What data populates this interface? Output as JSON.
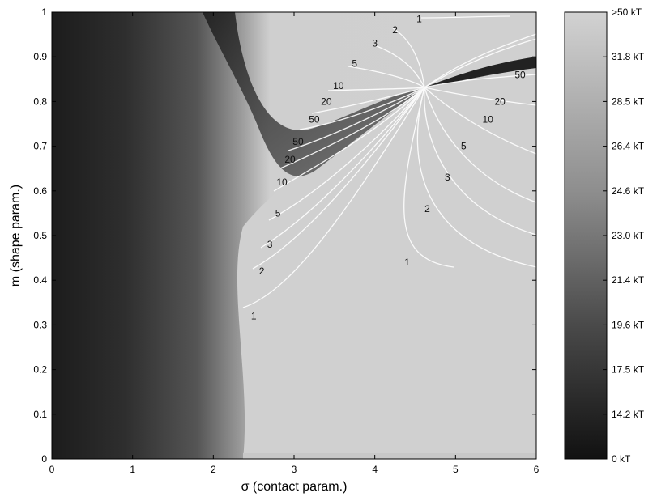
{
  "chart_data": {
    "type": "heatmap",
    "title": "",
    "xlabel": "σ (contact param.)",
    "ylabel": "m (shape param.)",
    "xlim": [
      0,
      6
    ],
    "ylim": [
      0,
      1
    ],
    "x_ticks": [
      "0",
      "1",
      "2",
      "3",
      "4",
      "5",
      "6"
    ],
    "y_ticks": [
      "0",
      "0.1",
      "0.2",
      "0.3",
      "0.4",
      "0.5",
      "0.6",
      "0.7",
      "0.8",
      "0.9",
      "1"
    ],
    "colormap": "grayscale",
    "colorbar_labels": [
      "0 kT",
      "14.2 kT",
      "17.5 kT",
      "19.6 kT",
      "21.4 kT",
      "23.0 kT",
      "24.6 kT",
      "26.4 kT",
      "28.5 kT",
      "31.8 kT",
      ">50 kT"
    ],
    "contour_color": "#ffffff",
    "saddle_point": {
      "x": 4.62,
      "y": 0.825
    },
    "contour_labels": [
      {
        "text": "1",
        "x": 2.5,
        "y": 0.32
      },
      {
        "text": "2",
        "x": 2.6,
        "y": 0.42
      },
      {
        "text": "3",
        "x": 2.7,
        "y": 0.48
      },
      {
        "text": "5",
        "x": 2.8,
        "y": 0.55
      },
      {
        "text": "10",
        "x": 2.85,
        "y": 0.62
      },
      {
        "text": "20",
        "x": 2.95,
        "y": 0.67
      },
      {
        "text": "50",
        "x": 3.05,
        "y": 0.71
      },
      {
        "text": "50",
        "x": 3.25,
        "y": 0.76
      },
      {
        "text": "20",
        "x": 3.4,
        "y": 0.8
      },
      {
        "text": "10",
        "x": 3.55,
        "y": 0.835
      },
      {
        "text": "5",
        "x": 3.75,
        "y": 0.885
      },
      {
        "text": "3",
        "x": 4.0,
        "y": 0.93
      },
      {
        "text": "2",
        "x": 4.25,
        "y": 0.96
      },
      {
        "text": "1",
        "x": 4.55,
        "y": 0.985
      },
      {
        "text": "50",
        "x": 5.8,
        "y": 0.86
      },
      {
        "text": "20",
        "x": 5.55,
        "y": 0.8
      },
      {
        "text": "10",
        "x": 5.4,
        "y": 0.76
      },
      {
        "text": "5",
        "x": 5.1,
        "y": 0.7
      },
      {
        "text": "3",
        "x": 4.9,
        "y": 0.63
      },
      {
        "text": "2",
        "x": 4.65,
        "y": 0.56
      },
      {
        "text": "1",
        "x": 4.4,
        "y": 0.44
      }
    ]
  }
}
